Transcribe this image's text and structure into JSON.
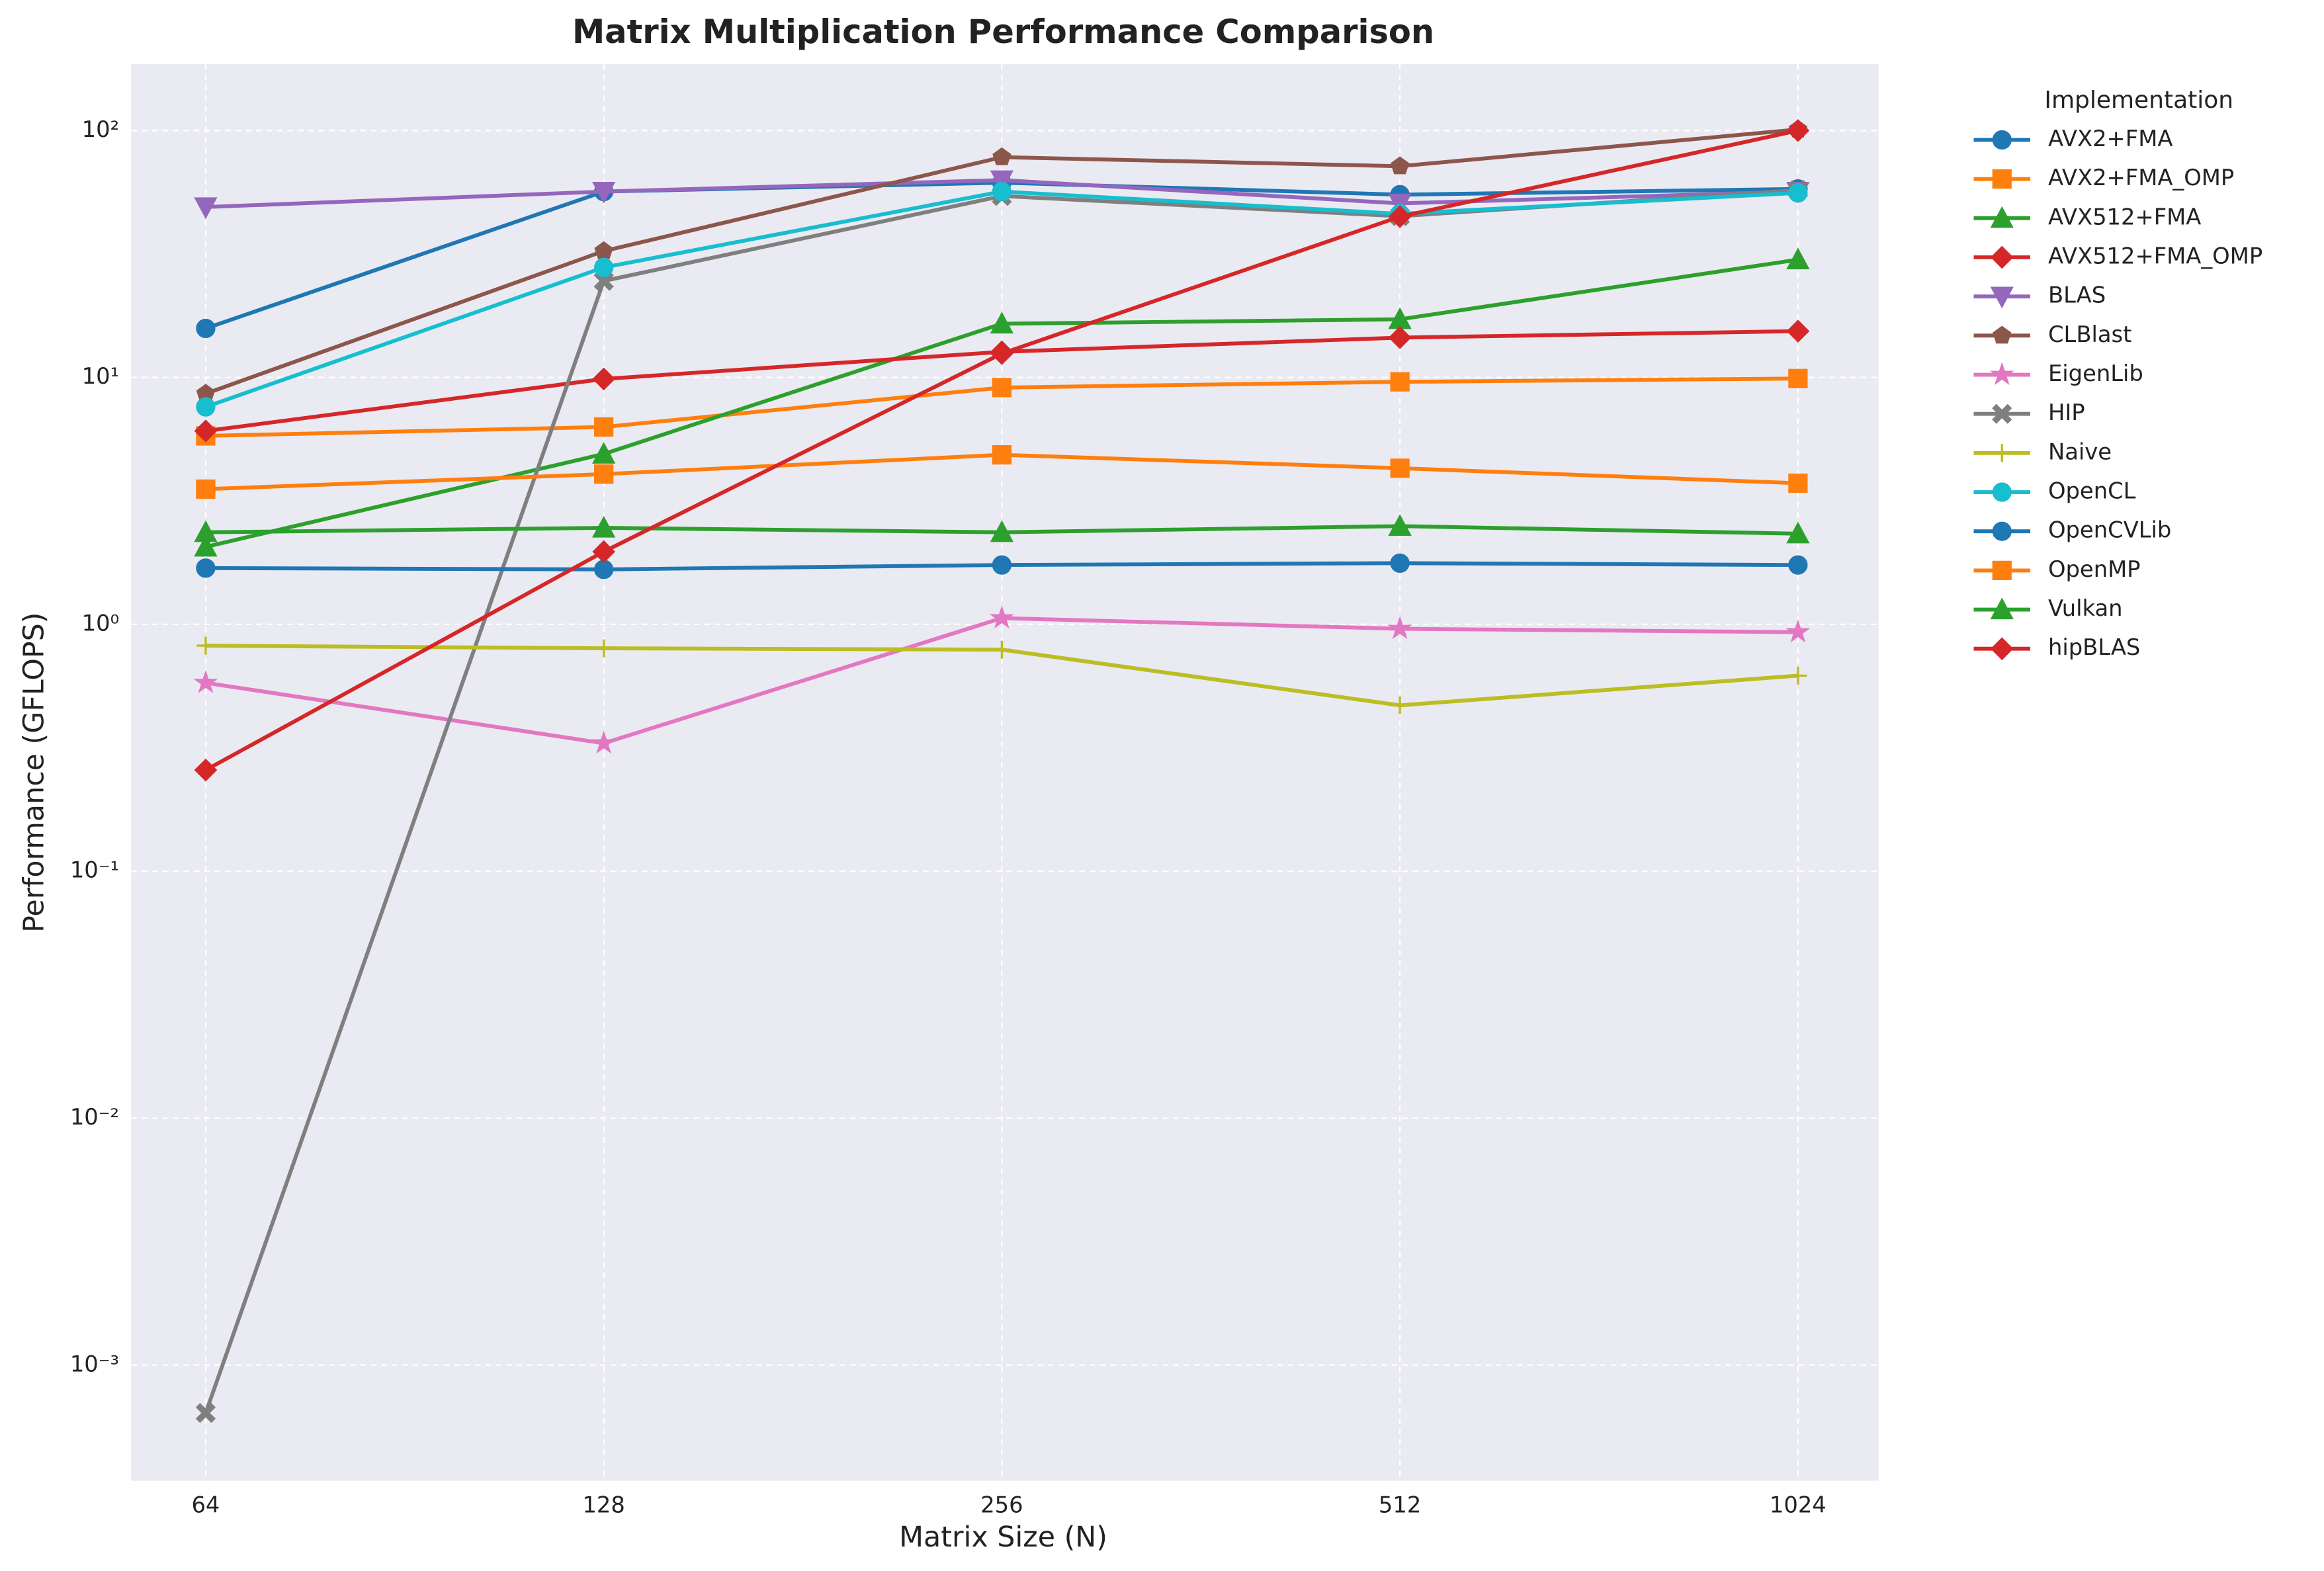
{
  "chart_data": {
    "type": "line",
    "title": "Matrix Multiplication Performance Comparison",
    "x_label": "Matrix Size (N)",
    "y_label": "Performance (GFLOPS)",
    "x": [
      64,
      128,
      256,
      512,
      1024
    ],
    "xscale": "log",
    "yscale": "log",
    "xlim": [
      56.2,
      1178
    ],
    "ylim": [
      0.00034,
      186
    ],
    "xticks": [
      64,
      128,
      256,
      512,
      1024
    ],
    "yticks": [
      {
        "value": 0.001,
        "label": "10⁻³"
      },
      {
        "value": 0.01,
        "label": "10⁻²"
      },
      {
        "value": 0.1,
        "label": "10⁻¹"
      },
      {
        "value": 1,
        "label": "10⁰"
      },
      {
        "value": 10,
        "label": "10¹"
      },
      {
        "value": 100,
        "label": "10²"
      }
    ],
    "grid": true,
    "legend_title": "Implementation",
    "legend_position": "outside right",
    "series": [
      {
        "name": "AVX2+FMA",
        "color": "#1f77b4",
        "marker": "o",
        "values": [
          15.8,
          56.6,
          61.5,
          55,
          58
        ]
      },
      {
        "name": "AVX2+FMA_OMP",
        "color": "#ff7f0e",
        "marker": "s",
        "values": [
          5.8,
          6.3,
          9.1,
          9.6,
          9.9
        ]
      },
      {
        "name": "AVX512+FMA",
        "color": "#2ca02c",
        "marker": "^",
        "values": [
          2.06,
          4.9,
          16.5,
          17.2,
          30
        ]
      },
      {
        "name": "AVX512+FMA_OMP",
        "color": "#d62728",
        "marker": "D",
        "values": [
          6.07,
          9.86,
          12.7,
          14.5,
          15.4
        ]
      },
      {
        "name": "BLAS",
        "color": "#9467bd",
        "marker": "v",
        "values": [
          49,
          56.6,
          63,
          50.7,
          56.6
        ]
      },
      {
        "name": "CLBlast",
        "color": "#8c564b",
        "marker": "p",
        "values": [
          8.6,
          32.5,
          78,
          71.7,
          101
        ]
      },
      {
        "name": "EigenLib",
        "color": "#e377c2",
        "marker": "*",
        "values": [
          0.58,
          0.33,
          1.06,
          0.96,
          0.93
        ]
      },
      {
        "name": "HIP",
        "color": "#7f7f7f",
        "marker": "X",
        "values": [
          0.00064,
          24.6,
          54.3,
          45,
          57.4
        ]
      },
      {
        "name": "Naive",
        "color": "#bcbd22",
        "marker": "+",
        "values": [
          0.82,
          0.8,
          0.79,
          0.47,
          0.62
        ]
      },
      {
        "name": "OpenCL",
        "color": "#17becf",
        "marker": "o",
        "values": [
          7.6,
          27.9,
          56.6,
          46,
          55.9
        ]
      },
      {
        "name": "OpenCVLib",
        "color": "#1f77b4",
        "marker": "o",
        "values": [
          1.69,
          1.67,
          1.74,
          1.77,
          1.74
        ]
      },
      {
        "name": "OpenMP",
        "color": "#ff7f0e",
        "marker": "s",
        "values": [
          3.53,
          4.06,
          4.86,
          4.29,
          3.73
        ]
      },
      {
        "name": "Vulkan",
        "color": "#2ca02c",
        "marker": "^",
        "values": [
          2.36,
          2.46,
          2.36,
          2.5,
          2.33
        ]
      },
      {
        "name": "hipBLAS",
        "color": "#d62728",
        "marker": "D",
        "values": [
          0.257,
          1.97,
          12.5,
          44.8,
          100
        ]
      }
    ]
  }
}
